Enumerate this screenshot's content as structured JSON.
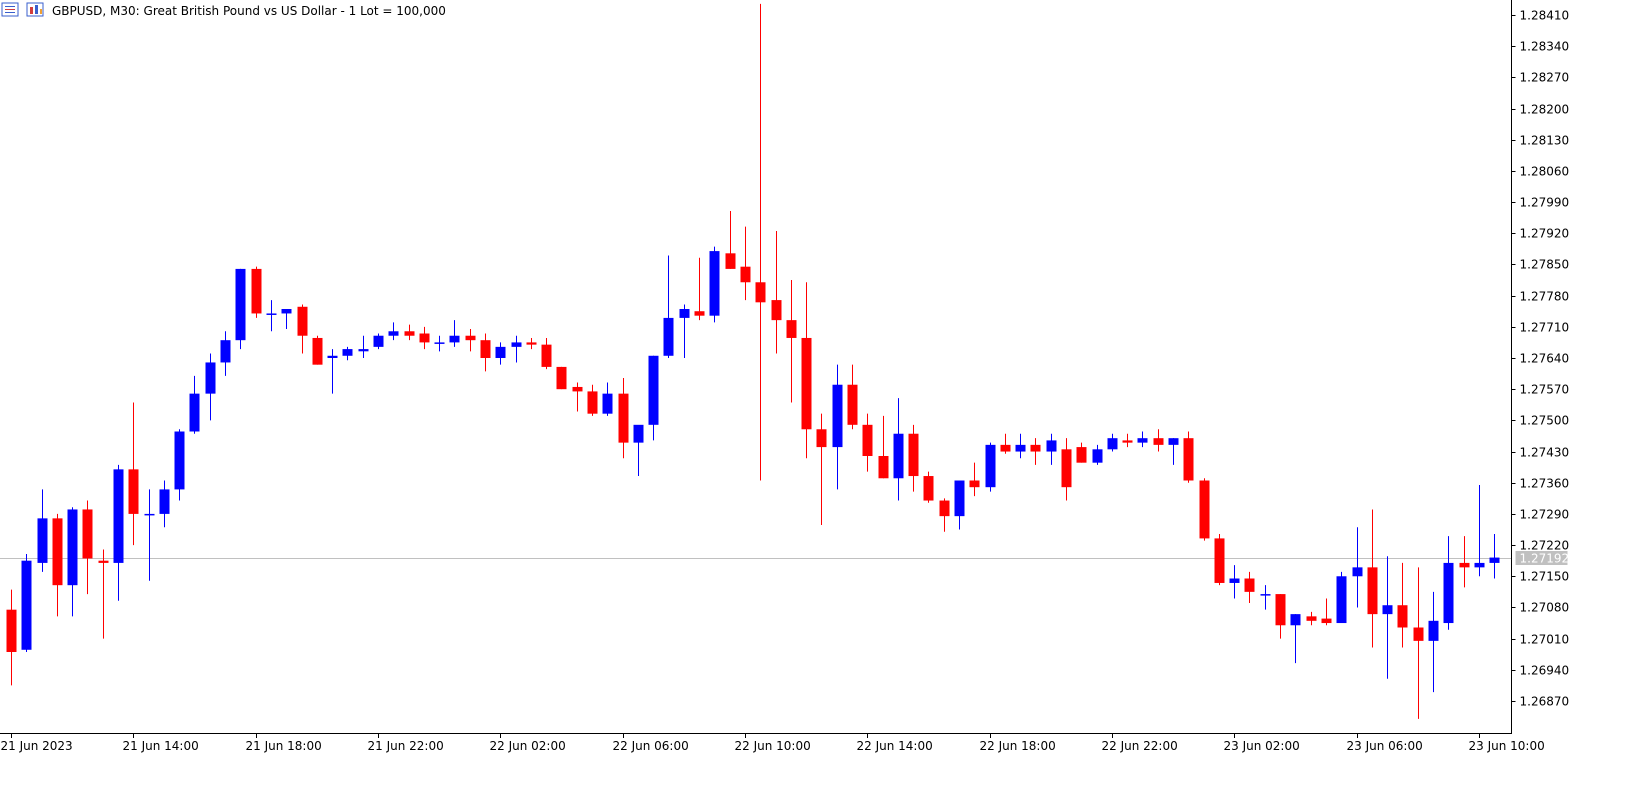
{
  "header": {
    "title": "GBPUSD, M30:  Great British Pound vs US Dollar - 1 Lot = 100,000"
  },
  "icons": {
    "menu_icon": "quick-menu-icon",
    "chart_icon": "chart-type-icon"
  },
  "colors": {
    "bull": "#0000ff",
    "bear": "#ff0000",
    "price_line": "#c0c0c0",
    "price_tag_bg": "#c0c0c0",
    "axis": "#000000",
    "background": "#ffffff"
  },
  "chart_data": {
    "type": "candlestick",
    "symbol": "GBPUSD",
    "timeframe": "M30",
    "ylim": [
      1.2681,
      1.28445
    ],
    "y_ticks": [
      "1.28410",
      "1.28340",
      "1.28270",
      "1.28200",
      "1.28130",
      "1.28060",
      "1.27990",
      "1.27920",
      "1.27850",
      "1.27780",
      "1.27710",
      "1.27640",
      "1.27570",
      "1.27500",
      "1.27430",
      "1.27360",
      "1.27290",
      "1.27220",
      "1.27150",
      "1.27080",
      "1.27010",
      "1.26940",
      "1.26870"
    ],
    "x_ticks": [
      {
        "label": "21 Jun 2023",
        "index": 0
      },
      {
        "label": "21 Jun 14:00",
        "index": 8
      },
      {
        "label": "21 Jun 18:00",
        "index": 16
      },
      {
        "label": "21 Jun 22:00",
        "index": 24
      },
      {
        "label": "22 Jun 02:00",
        "index": 32
      },
      {
        "label": "22 Jun 06:00",
        "index": 40
      },
      {
        "label": "22 Jun 10:00",
        "index": 48
      },
      {
        "label": "22 Jun 14:00",
        "index": 56
      },
      {
        "label": "22 Jun 18:00",
        "index": 64
      },
      {
        "label": "22 Jun 22:00",
        "index": 72
      },
      {
        "label": "23 Jun 02:00",
        "index": 80
      },
      {
        "label": "23 Jun 06:00",
        "index": 88
      },
      {
        "label": "23 Jun 10:00",
        "index": 96
      }
    ],
    "current_price": "1.27192",
    "current_price_value": 1.27192,
    "candles": [
      {
        "o": 1.27075,
        "h": 1.2712,
        "l": 1.26905,
        "c": 1.2698
      },
      {
        "o": 1.26985,
        "h": 1.272,
        "l": 1.2698,
        "c": 1.27185
      },
      {
        "o": 1.2718,
        "h": 1.27345,
        "l": 1.2716,
        "c": 1.2728
      },
      {
        "o": 1.2728,
        "h": 1.2729,
        "l": 1.2706,
        "c": 1.2713
      },
      {
        "o": 1.2713,
        "h": 1.27305,
        "l": 1.2706,
        "c": 1.273
      },
      {
        "o": 1.273,
        "h": 1.2732,
        "l": 1.2711,
        "c": 1.2719
      },
      {
        "o": 1.27185,
        "h": 1.2721,
        "l": 1.2701,
        "c": 1.2718
      },
      {
        "o": 1.2718,
        "h": 1.274,
        "l": 1.27095,
        "c": 1.2739
      },
      {
        "o": 1.2739,
        "h": 1.2754,
        "l": 1.2722,
        "c": 1.2729
      },
      {
        "o": 1.2729,
        "h": 1.27345,
        "l": 1.2714,
        "c": 1.2729
      },
      {
        "o": 1.2729,
        "h": 1.27365,
        "l": 1.2726,
        "c": 1.27345
      },
      {
        "o": 1.27345,
        "h": 1.2748,
        "l": 1.2732,
        "c": 1.27475
      },
      {
        "o": 1.27475,
        "h": 1.276,
        "l": 1.2747,
        "c": 1.2756
      },
      {
        "o": 1.2756,
        "h": 1.2765,
        "l": 1.275,
        "c": 1.2763
      },
      {
        "o": 1.2763,
        "h": 1.277,
        "l": 1.276,
        "c": 1.2768
      },
      {
        "o": 1.2768,
        "h": 1.2784,
        "l": 1.2766,
        "c": 1.2784
      },
      {
        "o": 1.2784,
        "h": 1.27845,
        "l": 1.2773,
        "c": 1.2774
      },
      {
        "o": 1.2774,
        "h": 1.2777,
        "l": 1.277,
        "c": 1.2774
      },
      {
        "o": 1.2774,
        "h": 1.2775,
        "l": 1.27705,
        "c": 1.2775
      },
      {
        "o": 1.27755,
        "h": 1.2776,
        "l": 1.2765,
        "c": 1.2769
      },
      {
        "o": 1.27685,
        "h": 1.2769,
        "l": 1.27625,
        "c": 1.27625
      },
      {
        "o": 1.2764,
        "h": 1.2766,
        "l": 1.2756,
        "c": 1.27645
      },
      {
        "o": 1.27645,
        "h": 1.27665,
        "l": 1.27635,
        "c": 1.2766
      },
      {
        "o": 1.27655,
        "h": 1.2769,
        "l": 1.2764,
        "c": 1.2766
      },
      {
        "o": 1.27665,
        "h": 1.27695,
        "l": 1.2766,
        "c": 1.2769
      },
      {
        "o": 1.2769,
        "h": 1.2772,
        "l": 1.2768,
        "c": 1.277
      },
      {
        "o": 1.277,
        "h": 1.27715,
        "l": 1.2768,
        "c": 1.2769
      },
      {
        "o": 1.27695,
        "h": 1.2771,
        "l": 1.2766,
        "c": 1.27675
      },
      {
        "o": 1.27675,
        "h": 1.2769,
        "l": 1.27655,
        "c": 1.27675
      },
      {
        "o": 1.27675,
        "h": 1.27725,
        "l": 1.27665,
        "c": 1.2769
      },
      {
        "o": 1.2769,
        "h": 1.27705,
        "l": 1.27655,
        "c": 1.2768
      },
      {
        "o": 1.2768,
        "h": 1.27695,
        "l": 1.2761,
        "c": 1.2764
      },
      {
        "o": 1.2764,
        "h": 1.27675,
        "l": 1.27625,
        "c": 1.27665
      },
      {
        "o": 1.27665,
        "h": 1.2769,
        "l": 1.2763,
        "c": 1.27675
      },
      {
        "o": 1.27675,
        "h": 1.27685,
        "l": 1.2766,
        "c": 1.2767
      },
      {
        "o": 1.2767,
        "h": 1.27685,
        "l": 1.27615,
        "c": 1.2762
      },
      {
        "o": 1.2762,
        "h": 1.2762,
        "l": 1.2757,
        "c": 1.2757
      },
      {
        "o": 1.27575,
        "h": 1.27585,
        "l": 1.2752,
        "c": 1.27565
      },
      {
        "o": 1.27565,
        "h": 1.2758,
        "l": 1.2751,
        "c": 1.27515
      },
      {
        "o": 1.27515,
        "h": 1.27585,
        "l": 1.2751,
        "c": 1.2756
      },
      {
        "o": 1.2756,
        "h": 1.27595,
        "l": 1.27415,
        "c": 1.2745
      },
      {
        "o": 1.2745,
        "h": 1.27485,
        "l": 1.27375,
        "c": 1.2749
      },
      {
        "o": 1.2749,
        "h": 1.27645,
        "l": 1.27455,
        "c": 1.27645
      },
      {
        "o": 1.27645,
        "h": 1.2787,
        "l": 1.2764,
        "c": 1.2773
      },
      {
        "o": 1.2773,
        "h": 1.2776,
        "l": 1.2764,
        "c": 1.2775
      },
      {
        "o": 1.27745,
        "h": 1.27865,
        "l": 1.27725,
        "c": 1.27735
      },
      {
        "o": 1.27735,
        "h": 1.2789,
        "l": 1.2772,
        "c": 1.2788
      },
      {
        "o": 1.27875,
        "h": 1.2797,
        "l": 1.2784,
        "c": 1.2784
      },
      {
        "o": 1.27845,
        "h": 1.27935,
        "l": 1.2777,
        "c": 1.2781
      },
      {
        "o": 1.2781,
        "h": 1.28435,
        "l": 1.27365,
        "c": 1.27765
      },
      {
        "o": 1.2777,
        "h": 1.27925,
        "l": 1.2765,
        "c": 1.27725
      },
      {
        "o": 1.27725,
        "h": 1.27815,
        "l": 1.2754,
        "c": 1.27685
      },
      {
        "o": 1.27685,
        "h": 1.2781,
        "l": 1.27415,
        "c": 1.2748
      },
      {
        "o": 1.2748,
        "h": 1.27515,
        "l": 1.27265,
        "c": 1.2744
      },
      {
        "o": 1.2744,
        "h": 1.27625,
        "l": 1.27345,
        "c": 1.2758
      },
      {
        "o": 1.2758,
        "h": 1.27625,
        "l": 1.2748,
        "c": 1.2749
      },
      {
        "o": 1.2749,
        "h": 1.27515,
        "l": 1.27385,
        "c": 1.2742
      },
      {
        "o": 1.2742,
        "h": 1.2751,
        "l": 1.2737,
        "c": 1.2737
      },
      {
        "o": 1.2737,
        "h": 1.2755,
        "l": 1.2732,
        "c": 1.2747
      },
      {
        "o": 1.2747,
        "h": 1.2749,
        "l": 1.2734,
        "c": 1.27375
      },
      {
        "o": 1.27375,
        "h": 1.27385,
        "l": 1.27315,
        "c": 1.2732
      },
      {
        "o": 1.2732,
        "h": 1.27325,
        "l": 1.2725,
        "c": 1.27285
      },
      {
        "o": 1.27285,
        "h": 1.27365,
        "l": 1.27255,
        "c": 1.27365
      },
      {
        "o": 1.27365,
        "h": 1.27405,
        "l": 1.2733,
        "c": 1.2735
      },
      {
        "o": 1.2735,
        "h": 1.2745,
        "l": 1.2734,
        "c": 1.27445
      },
      {
        "o": 1.27445,
        "h": 1.2747,
        "l": 1.27425,
        "c": 1.2743
      },
      {
        "o": 1.2743,
        "h": 1.2747,
        "l": 1.27415,
        "c": 1.27445
      },
      {
        "o": 1.27445,
        "h": 1.2746,
        "l": 1.274,
        "c": 1.2743
      },
      {
        "o": 1.2743,
        "h": 1.2747,
        "l": 1.274,
        "c": 1.27455
      },
      {
        "o": 1.27435,
        "h": 1.2746,
        "l": 1.2732,
        "c": 1.2735
      },
      {
        "o": 1.2744,
        "h": 1.2745,
        "l": 1.27405,
        "c": 1.27405
      },
      {
        "o": 1.27405,
        "h": 1.27445,
        "l": 1.274,
        "c": 1.27435
      },
      {
        "o": 1.27435,
        "h": 1.2747,
        "l": 1.2743,
        "c": 1.2746
      },
      {
        "o": 1.27455,
        "h": 1.2747,
        "l": 1.2744,
        "c": 1.2745
      },
      {
        "o": 1.2745,
        "h": 1.27475,
        "l": 1.2744,
        "c": 1.2746
      },
      {
        "o": 1.2746,
        "h": 1.2748,
        "l": 1.2743,
        "c": 1.27445
      },
      {
        "o": 1.27445,
        "h": 1.2746,
        "l": 1.274,
        "c": 1.2746
      },
      {
        "o": 1.2746,
        "h": 1.27475,
        "l": 1.2736,
        "c": 1.27365
      },
      {
        "o": 1.27365,
        "h": 1.2737,
        "l": 1.2723,
        "c": 1.27235
      },
      {
        "o": 1.27235,
        "h": 1.27245,
        "l": 1.2713,
        "c": 1.27135
      },
      {
        "o": 1.27135,
        "h": 1.27175,
        "l": 1.271,
        "c": 1.27145
      },
      {
        "o": 1.27145,
        "h": 1.2716,
        "l": 1.2709,
        "c": 1.27115
      },
      {
        "o": 1.2711,
        "h": 1.2713,
        "l": 1.27075,
        "c": 1.2711
      },
      {
        "o": 1.2711,
        "h": 1.2711,
        "l": 1.2701,
        "c": 1.2704
      },
      {
        "o": 1.2704,
        "h": 1.27065,
        "l": 1.26955,
        "c": 1.27065
      },
      {
        "o": 1.2706,
        "h": 1.2707,
        "l": 1.2704,
        "c": 1.2705
      },
      {
        "o": 1.27055,
        "h": 1.271,
        "l": 1.2704,
        "c": 1.27045
      },
      {
        "o": 1.27045,
        "h": 1.2716,
        "l": 1.27045,
        "c": 1.2715
      },
      {
        "o": 1.2715,
        "h": 1.2726,
        "l": 1.2708,
        "c": 1.2717
      },
      {
        "o": 1.2717,
        "h": 1.273,
        "l": 1.2699,
        "c": 1.27065
      },
      {
        "o": 1.27065,
        "h": 1.27195,
        "l": 1.2692,
        "c": 1.27085
      },
      {
        "o": 1.27085,
        "h": 1.2718,
        "l": 1.2699,
        "c": 1.27035
      },
      {
        "o": 1.27035,
        "h": 1.2717,
        "l": 1.2683,
        "c": 1.27005
      },
      {
        "o": 1.27005,
        "h": 1.27115,
        "l": 1.2689,
        "c": 1.2705
      },
      {
        "o": 1.27045,
        "h": 1.2724,
        "l": 1.2703,
        "c": 1.2718
      },
      {
        "o": 1.2718,
        "h": 1.2724,
        "l": 1.27125,
        "c": 1.2717
      },
      {
        "o": 1.2717,
        "h": 1.27355,
        "l": 1.2715,
        "c": 1.2718
      },
      {
        "o": 1.2718,
        "h": 1.27245,
        "l": 1.27145,
        "c": 1.27192
      }
    ]
  }
}
